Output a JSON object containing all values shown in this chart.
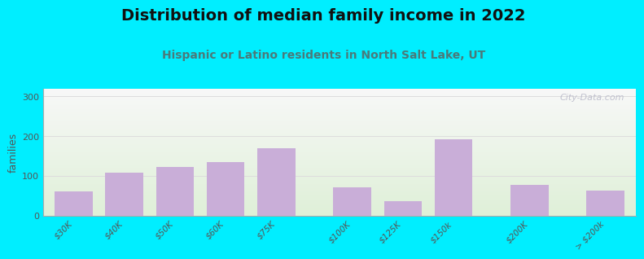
{
  "title": "Distribution of median family income in 2022",
  "subtitle": "Hispanic or Latino residents in North Salt Lake, UT",
  "ylabel": "families",
  "categories": [
    "$30K",
    "$40K",
    "$50K",
    "$60K",
    "$75K",
    "$100K",
    "$125K",
    "$150k",
    "$200K",
    "> $200k"
  ],
  "values": [
    60,
    107,
    122,
    135,
    170,
    70,
    37,
    192,
    78,
    62
  ],
  "bar_color": "#c9aed8",
  "bar_edgecolor": "#c9aed8",
  "background_outer": "#00eeff",
  "background_plot_top": "#dff0d8",
  "background_plot_bottom": "#f8f8f8",
  "yticks": [
    0,
    100,
    200,
    300
  ],
  "ylim": [
    0,
    320
  ],
  "grid_color": "#dddddd",
  "title_fontsize": 14,
  "title_color": "#111111",
  "subtitle_fontsize": 10,
  "subtitle_color": "#4a7a7a",
  "watermark_text": "City-Data.com",
  "watermark_color": "#b8b8c8",
  "bar_positions": [
    0,
    1,
    2,
    3,
    4,
    5.5,
    6.5,
    7.5,
    9,
    10.5
  ],
  "xlim": [
    -0.6,
    11.1
  ]
}
